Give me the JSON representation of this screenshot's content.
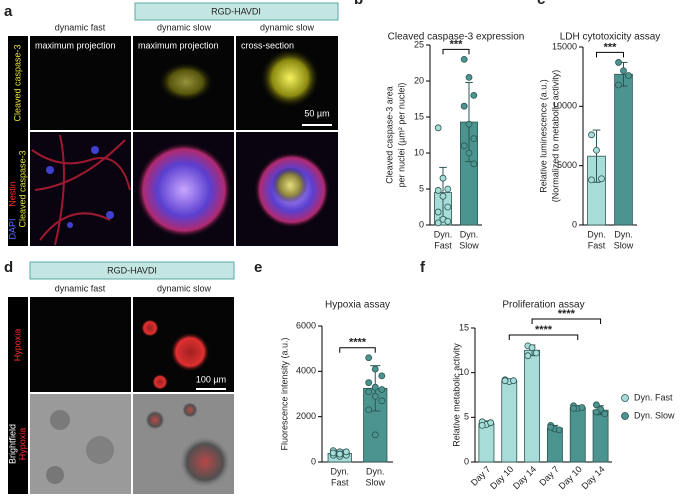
{
  "panel_a": {
    "letter": "a",
    "header": "RGD-HAVDI",
    "columns": [
      "dynamic fast",
      "dynamic slow",
      "dynamic slow"
    ],
    "image_labels": [
      "maximum projection",
      "maximum projection",
      "cross-section"
    ],
    "row_labels": [
      "Cleaved caspase-3",
      "DAPI",
      "Nestin",
      "Cleaved caspase-3"
    ],
    "scale_bar": "50 µm"
  },
  "panel_d": {
    "letter": "d",
    "header": "RGD-HAVDI",
    "columns": [
      "dynamic fast",
      "dynamic slow"
    ],
    "row_labels": [
      "Hypoxia",
      "Brightfield",
      "Hypoxia"
    ],
    "scale_bar": "100 µm"
  },
  "chart_data": [
    {
      "type": "bar",
      "panel": "b",
      "title": "Cleaved caspase-3 expression",
      "ylabel": [
        "Cleaved caspase-3 area",
        "per nuclei (µm² per nuclei)"
      ],
      "categories": [
        [
          "Dyn.",
          "Fast"
        ],
        [
          "Dyn.",
          "Slow"
        ]
      ],
      "colors": [
        "#a8dcd9",
        "#4c948f"
      ],
      "series": [
        {
          "values": [
            4.5,
            14.3
          ],
          "errors": [
            3.5,
            5.5
          ],
          "points": [
            [
              13.5,
              6.5,
              5.0,
              4.8,
              4.0,
              2.5,
              1.8,
              0.8,
              0.5,
              0.3
            ],
            [
              23,
              20.5,
              18,
              16.5,
              14,
              12,
              11,
              10,
              8.5
            ]
          ]
        }
      ],
      "ylim": [
        0,
        25
      ],
      "yticks": [
        0,
        5,
        10,
        15,
        20,
        25
      ],
      "significance": [
        {
          "from": 0,
          "to": 1,
          "label": "***"
        }
      ]
    },
    {
      "type": "bar",
      "panel": "c",
      "title": "LDH cytotoxicity assay",
      "ylabel": [
        "Relative luminescence (a.u.)",
        "(Normalized to metabolic activity)"
      ],
      "categories": [
        [
          "Dyn.",
          "Fast"
        ],
        [
          "Dyn.",
          "Slow"
        ]
      ],
      "colors": [
        "#a8dcd9",
        "#4c948f"
      ],
      "series": [
        {
          "values": [
            5800,
            12700
          ],
          "errors": [
            2200,
            1000
          ],
          "points": [
            [
              7600,
              6300,
              3900,
              3800
            ],
            [
              13700,
              13000,
              12600,
              11800
            ]
          ]
        }
      ],
      "ylim": [
        0,
        15000
      ],
      "yticks": [
        0,
        5000,
        10000,
        15000
      ],
      "significance": [
        {
          "from": 0,
          "to": 1,
          "label": "***"
        }
      ]
    },
    {
      "type": "bar",
      "panel": "e",
      "title": "Hypoxia assay",
      "ylabel": [
        "Fluorescence intensity (a.u.)"
      ],
      "categories": [
        [
          "Dyn.",
          "Fast"
        ],
        [
          "Dyn.",
          "Slow"
        ]
      ],
      "colors": [
        "#a8dcd9",
        "#4c948f"
      ],
      "series": [
        {
          "values": [
            380,
            3250
          ],
          "errors": [
            150,
            1000
          ],
          "points": [
            [
              500,
              450,
              400,
              380,
              350,
              300,
              300,
              250,
              450,
              400,
              350
            ],
            [
              4600,
              4100,
              3800,
              3500,
              3300,
              3200,
              3100,
              2900,
              2700,
              2300,
              1200
            ]
          ]
        }
      ],
      "ylim": [
        0,
        6000
      ],
      "yticks": [
        0,
        2000,
        4000,
        6000
      ],
      "significance": [
        {
          "from": 0,
          "to": 1,
          "label": "****"
        }
      ]
    },
    {
      "type": "bar",
      "panel": "f",
      "title": "Proliferation assay",
      "ylabel": [
        "Relative metabolic activity"
      ],
      "categories": [
        "Day 7",
        "Day 10",
        "Day 14",
        "Day 7",
        "Day 10",
        "Day 14"
      ],
      "series": [
        {
          "name": "Dyn. Fast",
          "color": "#a8dcd9",
          "values": [
            4.3,
            9.1,
            12.5,
            null,
            null,
            null
          ],
          "errors": [
            0.3,
            0.2,
            0.6,
            null,
            null,
            null
          ],
          "points": [
            [
              4.5,
              4.2,
              4.4,
              4.1
            ],
            [
              9.2,
              9.0,
              9.1,
              9.1
            ],
            [
              13.0,
              12.8,
              12.2,
              11.9
            ],
            null,
            null,
            null
          ]
        },
        {
          "name": "Dyn. Slow",
          "color": "#4c948f",
          "values": [
            null,
            null,
            null,
            3.8,
            6.1,
            5.8
          ],
          "errors": [
            null,
            null,
            null,
            0.3,
            0.2,
            0.5
          ],
          "points": [
            null,
            null,
            null,
            [
              4.1,
              3.7,
              3.6,
              3.9
            ],
            [
              6.3,
              6.0,
              6.1,
              6.0
            ],
            [
              6.4,
              5.9,
              5.4,
              5.6
            ]
          ]
        }
      ],
      "ylim": [
        0,
        15
      ],
      "yticks": [
        0,
        5,
        10,
        15
      ],
      "significance": [
        {
          "from": 1,
          "to": 4,
          "label": "****"
        },
        {
          "from": 2,
          "to": 5,
          "label": "****"
        }
      ]
    }
  ]
}
